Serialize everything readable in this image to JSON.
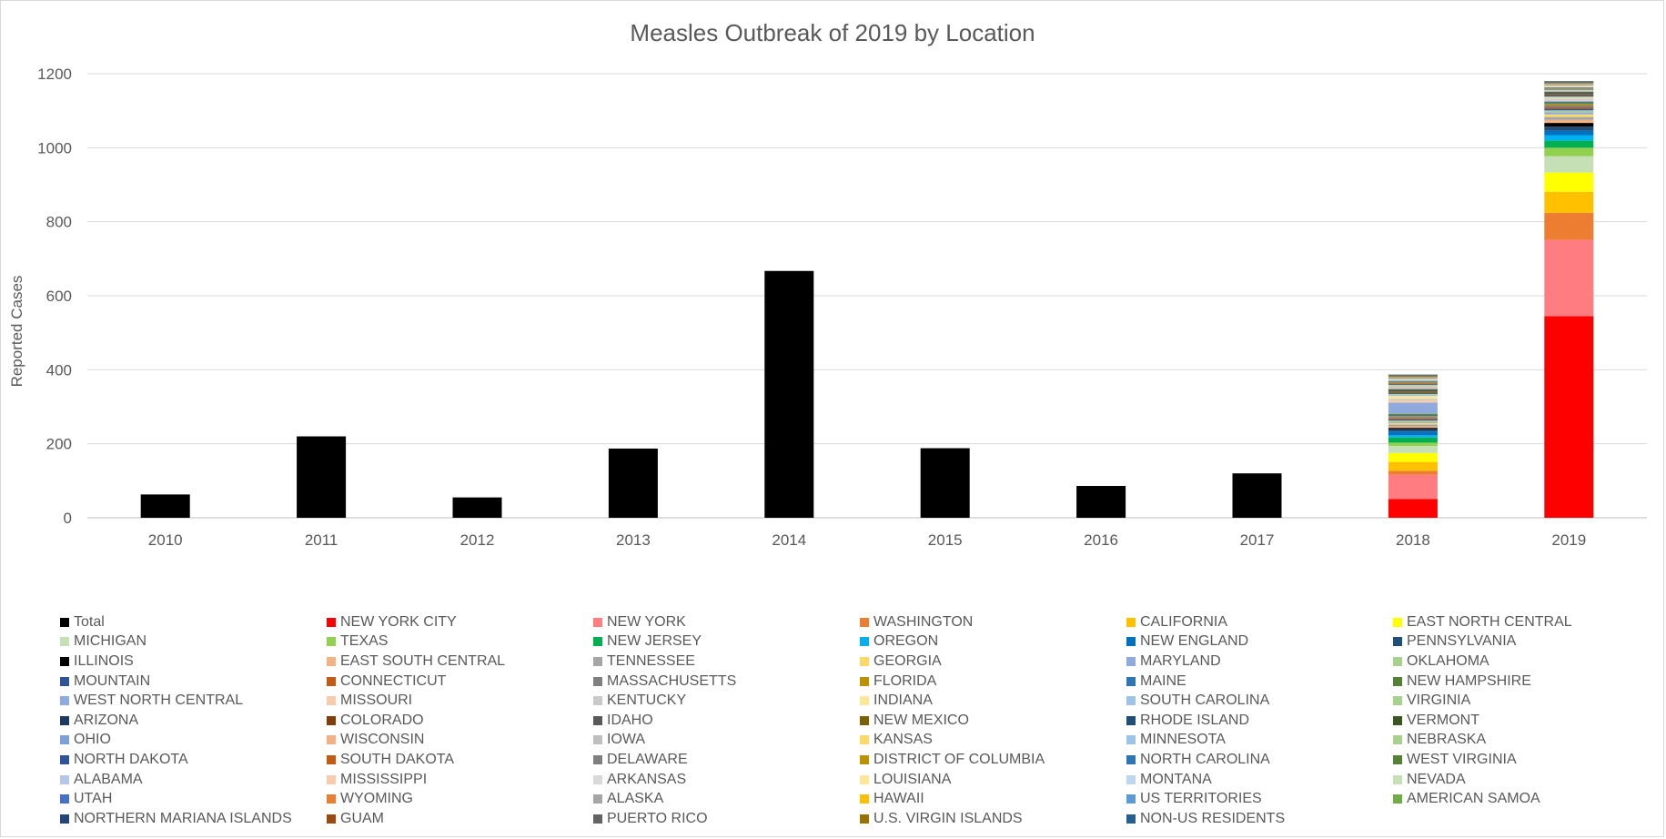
{
  "chart_data": {
    "type": "bar",
    "stacked": true,
    "title": "Measles Outbreak of 2019 by Location",
    "xlabel": "",
    "ylabel": "Reported  Cases",
    "ylim": [
      0,
      1200
    ],
    "yticks": [
      0,
      200,
      400,
      600,
      800,
      1000,
      1200
    ],
    "grid": true,
    "legend_position": "bottom",
    "categories": [
      "2010",
      "2011",
      "2012",
      "2013",
      "2014",
      "2015",
      "2016",
      "2017",
      "2018",
      "2019"
    ],
    "series": [
      {
        "name": "Total",
        "color": "#000000",
        "values": [
          63,
          220,
          55,
          187,
          667,
          188,
          86,
          120,
          null,
          null
        ]
      },
      {
        "name": "NEW YORK CITY",
        "color": "#ff0000",
        "values": [
          null,
          null,
          null,
          null,
          null,
          null,
          null,
          null,
          51,
          545
        ]
      },
      {
        "name": "NEW YORK",
        "color": "#ff7c80",
        "values": [
          null,
          null,
          null,
          null,
          null,
          null,
          null,
          null,
          65,
          206
        ]
      },
      {
        "name": "WASHINGTON",
        "color": "#ed7d31",
        "values": [
          null,
          null,
          null,
          null,
          null,
          null,
          null,
          null,
          11,
          73
        ]
      },
      {
        "name": "CALIFORNIA",
        "color": "#ffc000",
        "values": [
          null,
          null,
          null,
          null,
          null,
          null,
          null,
          null,
          24,
          57
        ]
      },
      {
        "name": "EAST NORTH CENTRAL",
        "color": "#ffff00",
        "values": [
          null,
          null,
          null,
          null,
          null,
          null,
          null,
          null,
          24,
          52
        ]
      },
      {
        "name": "MICHIGAN",
        "color": "#c5e0b4",
        "values": [
          null,
          null,
          null,
          null,
          null,
          null,
          null,
          null,
          19,
          44
        ]
      },
      {
        "name": "TEXAS",
        "color": "#92d050",
        "values": [
          null,
          null,
          null,
          null,
          null,
          null,
          null,
          null,
          9,
          23
        ]
      },
      {
        "name": "NEW JERSEY",
        "color": "#00b050",
        "values": [
          null,
          null,
          null,
          null,
          null,
          null,
          null,
          null,
          14,
          19
        ]
      },
      {
        "name": "OREGON",
        "color": "#00b0f0",
        "values": [
          null,
          null,
          null,
          null,
          null,
          null,
          null,
          null,
          6,
          15
        ]
      },
      {
        "name": "NEW ENGLAND",
        "color": "#0070c0",
        "values": [
          null,
          null,
          null,
          null,
          null,
          null,
          null,
          null,
          10,
          12
        ]
      },
      {
        "name": "PENNSYLVANIA",
        "color": "#1f4e79",
        "values": [
          null,
          null,
          null,
          null,
          null,
          null,
          null,
          null,
          6,
          11
        ]
      },
      {
        "name": "ILLINOIS",
        "color": "#000000",
        "values": [
          null,
          null,
          null,
          null,
          null,
          null,
          null,
          null,
          4,
          10
        ]
      },
      {
        "name": "EAST SOUTH CENTRAL",
        "color": "#f4b183",
        "values": [
          null,
          null,
          null,
          null,
          null,
          null,
          null,
          null,
          4,
          8
        ]
      },
      {
        "name": "TENNESSEE",
        "color": "#a5a5a5",
        "values": [
          null,
          null,
          null,
          null,
          null,
          null,
          null,
          null,
          5,
          8
        ]
      },
      {
        "name": "GEORGIA",
        "color": "#ffd966",
        "values": [
          null,
          null,
          null,
          null,
          null,
          null,
          null,
          null,
          4,
          7
        ]
      },
      {
        "name": "MARYLAND",
        "color": "#8faadc",
        "values": [
          null,
          null,
          null,
          null,
          null,
          null,
          null,
          null,
          4,
          6
        ]
      },
      {
        "name": "OKLAHOMA",
        "color": "#a9d18e",
        "values": [
          null,
          null,
          null,
          null,
          null,
          null,
          null,
          null,
          3,
          5
        ]
      },
      {
        "name": "MOUNTAIN",
        "color": "#2f5597",
        "values": [
          null,
          null,
          null,
          null,
          null,
          null,
          null,
          null,
          3,
          5
        ]
      },
      {
        "name": "CONNECTICUT",
        "color": "#c55a11",
        "values": [
          null,
          null,
          null,
          null,
          null,
          null,
          null,
          null,
          3,
          4
        ]
      },
      {
        "name": "MASSACHUSETTS",
        "color": "#7f7f7f",
        "values": [
          null,
          null,
          null,
          null,
          null,
          null,
          null,
          null,
          3,
          4
        ]
      },
      {
        "name": "FLORIDA",
        "color": "#bf9000",
        "values": [
          null,
          null,
          null,
          null,
          null,
          null,
          null,
          null,
          3,
          4
        ]
      },
      {
        "name": "MAINE",
        "color": "#2e75b6",
        "values": [
          null,
          null,
          null,
          null,
          null,
          null,
          null,
          null,
          3,
          3
        ]
      },
      {
        "name": "NEW HAMPSHIRE",
        "color": "#548235",
        "values": [
          null,
          null,
          null,
          null,
          null,
          null,
          null,
          null,
          3,
          3
        ]
      },
      {
        "name": "WEST NORTH CENTRAL",
        "color": "#8faadc",
        "values": [
          null,
          null,
          null,
          null,
          null,
          null,
          null,
          null,
          30,
          3
        ]
      },
      {
        "name": "MISSOURI",
        "color": "#f8cbad",
        "values": [
          null,
          null,
          null,
          null,
          null,
          null,
          null,
          null,
          6,
          3
        ]
      },
      {
        "name": "KENTUCKY",
        "color": "#c9c9c9",
        "values": [
          null,
          null,
          null,
          null,
          null,
          null,
          null,
          null,
          4,
          3
        ]
      },
      {
        "name": "INDIANA",
        "color": "#ffe699",
        "values": [
          null,
          null,
          null,
          null,
          null,
          null,
          null,
          null,
          8,
          2
        ]
      },
      {
        "name": "SOUTH CAROLINA",
        "color": "#9dc3e6",
        "values": [
          null,
          null,
          null,
          null,
          null,
          null,
          null,
          null,
          3,
          2
        ]
      },
      {
        "name": "VIRGINIA",
        "color": "#a9d18e",
        "values": [
          null,
          null,
          null,
          null,
          null,
          null,
          null,
          null,
          3,
          2
        ]
      },
      {
        "name": "ARIZONA",
        "color": "#203864",
        "values": [
          null,
          null,
          null,
          null,
          null,
          null,
          null,
          null,
          2,
          2
        ]
      },
      {
        "name": "COLORADO",
        "color": "#843c0c",
        "values": [
          null,
          null,
          null,
          null,
          null,
          null,
          null,
          null,
          2,
          2
        ]
      },
      {
        "name": "IDAHO",
        "color": "#595959",
        "values": [
          null,
          null,
          null,
          null,
          null,
          null,
          null,
          null,
          2,
          2
        ]
      },
      {
        "name": "NEW MEXICO",
        "color": "#7f6000",
        "values": [
          null,
          null,
          null,
          null,
          null,
          null,
          null,
          null,
          2,
          2
        ]
      },
      {
        "name": "RHODE ISLAND",
        "color": "#1f4e79",
        "values": [
          null,
          null,
          null,
          null,
          null,
          null,
          null,
          null,
          2,
          2
        ]
      },
      {
        "name": "VERMONT",
        "color": "#385723",
        "values": [
          null,
          null,
          null,
          null,
          null,
          null,
          null,
          null,
          2,
          2
        ]
      },
      {
        "name": "OHIO",
        "color": "#7f9fd8",
        "values": [
          null,
          null,
          null,
          null,
          null,
          null,
          null,
          null,
          2,
          1
        ]
      },
      {
        "name": "WISCONSIN",
        "color": "#f4b183",
        "values": [
          null,
          null,
          null,
          null,
          null,
          null,
          null,
          null,
          2,
          1
        ]
      },
      {
        "name": "IOWA",
        "color": "#bfbfbf",
        "values": [
          null,
          null,
          null,
          null,
          null,
          null,
          null,
          null,
          2,
          1
        ]
      },
      {
        "name": "KANSAS",
        "color": "#ffd966",
        "values": [
          null,
          null,
          null,
          null,
          null,
          null,
          null,
          null,
          2,
          1
        ]
      },
      {
        "name": "MINNESOTA",
        "color": "#9dc3e6",
        "values": [
          null,
          null,
          null,
          null,
          null,
          null,
          null,
          null,
          2,
          1
        ]
      },
      {
        "name": "NEBRASKA",
        "color": "#a9d18e",
        "values": [
          null,
          null,
          null,
          null,
          null,
          null,
          null,
          null,
          2,
          1
        ]
      },
      {
        "name": "NORTH DAKOTA",
        "color": "#2f5597",
        "values": [
          null,
          null,
          null,
          null,
          null,
          null,
          null,
          null,
          2,
          1
        ]
      },
      {
        "name": "SOUTH DAKOTA",
        "color": "#c55a11",
        "values": [
          null,
          null,
          null,
          null,
          null,
          null,
          null,
          null,
          2,
          1
        ]
      },
      {
        "name": "DELAWARE",
        "color": "#7f7f7f",
        "values": [
          null,
          null,
          null,
          null,
          null,
          null,
          null,
          null,
          2,
          1
        ]
      },
      {
        "name": "DISTRICT OF COLUMBIA",
        "color": "#bf9000",
        "values": [
          null,
          null,
          null,
          null,
          null,
          null,
          null,
          null,
          2,
          1
        ]
      },
      {
        "name": "NORTH CAROLINA",
        "color": "#2e75b6",
        "values": [
          null,
          null,
          null,
          null,
          null,
          null,
          null,
          null,
          2,
          1
        ]
      },
      {
        "name": "WEST VIRGINIA",
        "color": "#548235",
        "values": [
          null,
          null,
          null,
          null,
          null,
          null,
          null,
          null,
          1,
          1
        ]
      },
      {
        "name": "ALABAMA",
        "color": "#b4c7e7",
        "values": [
          null,
          null,
          null,
          null,
          null,
          null,
          null,
          null,
          1,
          1
        ]
      },
      {
        "name": "MISSISSIPPI",
        "color": "#f8cbad",
        "values": [
          null,
          null,
          null,
          null,
          null,
          null,
          null,
          null,
          1,
          1
        ]
      },
      {
        "name": "ARKANSAS",
        "color": "#d9d9d9",
        "values": [
          null,
          null,
          null,
          null,
          null,
          null,
          null,
          null,
          1,
          1
        ]
      },
      {
        "name": "LOUISIANA",
        "color": "#ffe699",
        "values": [
          null,
          null,
          null,
          null,
          null,
          null,
          null,
          null,
          1,
          1
        ]
      },
      {
        "name": "MONTANA",
        "color": "#bdd7ee",
        "values": [
          null,
          null,
          null,
          null,
          null,
          null,
          null,
          null,
          1,
          1
        ]
      },
      {
        "name": "NEVADA",
        "color": "#c5e0b4",
        "values": [
          null,
          null,
          null,
          null,
          null,
          null,
          null,
          null,
          1,
          1
        ]
      },
      {
        "name": "UTAH",
        "color": "#4472c4",
        "values": [
          null,
          null,
          null,
          null,
          null,
          null,
          null,
          null,
          1,
          1
        ]
      },
      {
        "name": "WYOMING",
        "color": "#ed7d31",
        "values": [
          null,
          null,
          null,
          null,
          null,
          null,
          null,
          null,
          1,
          1
        ]
      },
      {
        "name": "ALASKA",
        "color": "#a5a5a5",
        "values": [
          null,
          null,
          null,
          null,
          null,
          null,
          null,
          null,
          1,
          1
        ]
      },
      {
        "name": "HAWAII",
        "color": "#ffc000",
        "values": [
          null,
          null,
          null,
          null,
          null,
          null,
          null,
          null,
          1,
          1
        ]
      },
      {
        "name": "US TERRITORIES",
        "color": "#5b9bd5",
        "values": [
          null,
          null,
          null,
          null,
          null,
          null,
          null,
          null,
          1,
          1
        ]
      },
      {
        "name": "AMERICAN SAMOA",
        "color": "#70ad47",
        "values": [
          null,
          null,
          null,
          null,
          null,
          null,
          null,
          null,
          1,
          1
        ]
      },
      {
        "name": "NORTHERN MARIANA ISLANDS",
        "color": "#264478",
        "values": [
          null,
          null,
          null,
          null,
          null,
          null,
          null,
          null,
          1,
          1
        ]
      },
      {
        "name": "GUAM",
        "color": "#9e480e",
        "values": [
          null,
          null,
          null,
          null,
          null,
          null,
          null,
          null,
          1,
          1
        ]
      },
      {
        "name": "PUERTO RICO",
        "color": "#636363",
        "values": [
          null,
          null,
          null,
          null,
          null,
          null,
          null,
          null,
          1,
          1
        ]
      },
      {
        "name": "U.S. VIRGIN ISLANDS",
        "color": "#997300",
        "values": [
          null,
          null,
          null,
          null,
          null,
          null,
          null,
          null,
          1,
          1
        ]
      },
      {
        "name": "NON-US RESIDENTS",
        "color": "#255e91",
        "values": [
          null,
          null,
          null,
          null,
          null,
          null,
          null,
          null,
          1,
          1
        ]
      }
    ]
  }
}
